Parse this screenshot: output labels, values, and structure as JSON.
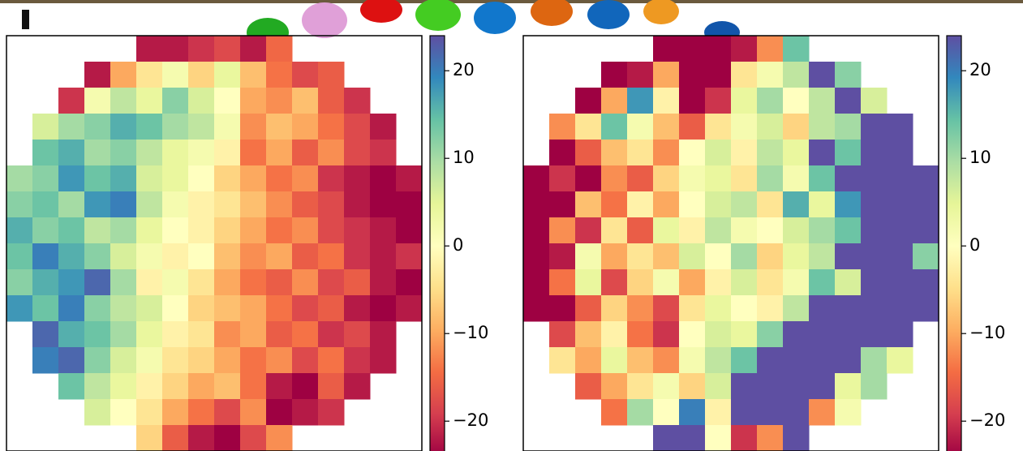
{
  "chart_data": [
    {
      "type": "heatmap",
      "zlim": [
        -24,
        24
      ],
      "colormap": [
        "#9e0142",
        "#d53e4f",
        "#f46d43",
        "#fdae61",
        "#fee08b",
        "#ffffbf",
        "#e6f598",
        "#abdda4",
        "#66c2a5",
        "#3288bd",
        "#5e4fa2"
      ],
      "colorbar_ticks": [
        {
          "value": -20,
          "label": "−20"
        },
        {
          "value": -10,
          "label": "−10"
        },
        0,
        10,
        20
      ],
      "values": [
        [
          null,
          null,
          null,
          null,
          null,
          -22,
          -22,
          -20,
          -18,
          -22,
          -15,
          null,
          null,
          null,
          null,
          null
        ],
        [
          null,
          null,
          null,
          -22,
          -10,
          -4,
          2,
          -6,
          4,
          -8,
          -14,
          -18,
          -16,
          null,
          null,
          null
        ],
        [
          null,
          null,
          -20,
          2,
          8,
          4,
          12,
          6,
          0,
          -10,
          -12,
          -8,
          -16,
          -20,
          null,
          null
        ],
        [
          null,
          6,
          10,
          12,
          16,
          14,
          10,
          8,
          2,
          -12,
          -8,
          -10,
          -14,
          -18,
          -22,
          null
        ],
        [
          null,
          14,
          16,
          10,
          12,
          8,
          4,
          2,
          -2,
          -14,
          -10,
          -16,
          -12,
          -18,
          -20,
          null
        ],
        [
          10,
          12,
          18,
          14,
          16,
          6,
          4,
          0,
          -6,
          -10,
          -14,
          -12,
          -20,
          -22,
          -24,
          -22
        ],
        [
          12,
          14,
          10,
          18,
          20,
          8,
          2,
          -2,
          -4,
          -8,
          -12,
          -16,
          -18,
          -22,
          -24,
          -24
        ],
        [
          16,
          12,
          14,
          8,
          10,
          4,
          0,
          -2,
          -6,
          -10,
          -14,
          -12,
          -18,
          -20,
          -22,
          -24
        ],
        [
          14,
          20,
          16,
          12,
          6,
          2,
          -2,
          0,
          -8,
          -12,
          -10,
          -16,
          -14,
          -20,
          -22,
          -20
        ],
        [
          12,
          16,
          18,
          22,
          10,
          -2,
          2,
          -4,
          -10,
          -14,
          -16,
          -12,
          -18,
          -16,
          -22,
          -24
        ],
        [
          18,
          14,
          20,
          12,
          8,
          6,
          0,
          -6,
          -8,
          -10,
          -14,
          -18,
          -16,
          -22,
          -24,
          -22
        ],
        [
          null,
          22,
          16,
          14,
          10,
          4,
          -2,
          -4,
          -12,
          -10,
          -16,
          -14,
          -20,
          -18,
          -22,
          null
        ],
        [
          null,
          20,
          22,
          12,
          6,
          2,
          -4,
          -6,
          -10,
          -14,
          -12,
          -18,
          -14,
          -20,
          -22,
          null
        ],
        [
          null,
          null,
          14,
          8,
          4,
          -2,
          -6,
          -10,
          -8,
          -14,
          -22,
          -24,
          -16,
          -22,
          null,
          null
        ],
        [
          null,
          null,
          null,
          6,
          0,
          -4,
          -10,
          -14,
          -18,
          -12,
          -24,
          -22,
          -20,
          null,
          null,
          null
        ],
        [
          null,
          null,
          null,
          null,
          null,
          -6,
          -16,
          -22,
          -24,
          -18,
          -12,
          null,
          null,
          null,
          null,
          null
        ]
      ]
    },
    {
      "type": "heatmap",
      "zlim": [
        -24,
        24
      ],
      "colormap": [
        "#9e0142",
        "#d53e4f",
        "#f46d43",
        "#fdae61",
        "#fee08b",
        "#ffffbf",
        "#e6f598",
        "#abdda4",
        "#66c2a5",
        "#3288bd",
        "#5e4fa2"
      ],
      "colorbar_ticks": [
        {
          "value": -20,
          "label": "−20"
        },
        {
          "value": -10,
          "label": "−10"
        },
        0,
        10,
        20
      ],
      "values": [
        [
          null,
          null,
          null,
          null,
          null,
          -24,
          -24,
          -24,
          -22,
          -12,
          14,
          null,
          null,
          null,
          null,
          null
        ],
        [
          null,
          null,
          null,
          -24,
          -22,
          -10,
          -24,
          -24,
          -4,
          2,
          8,
          24,
          12,
          null,
          null,
          null
        ],
        [
          null,
          null,
          -24,
          -10,
          18,
          -2,
          -24,
          -20,
          4,
          10,
          0,
          8,
          24,
          6,
          null,
          null
        ],
        [
          null,
          -12,
          -4,
          14,
          2,
          -8,
          -16,
          -4,
          2,
          6,
          -6,
          8,
          10,
          24,
          24,
          null
        ],
        [
          null,
          -24,
          -16,
          -8,
          -4,
          -12,
          0,
          6,
          -2,
          8,
          4,
          24,
          14,
          24,
          24,
          null
        ],
        [
          -24,
          -20,
          -24,
          -12,
          -16,
          -6,
          2,
          4,
          -4,
          10,
          2,
          14,
          24,
          24,
          24,
          24
        ],
        [
          -24,
          -24,
          -8,
          -14,
          -2,
          -10,
          0,
          6,
          8,
          -4,
          16,
          4,
          18,
          24,
          24,
          24
        ],
        [
          -24,
          -12,
          -20,
          -4,
          -16,
          4,
          -2,
          8,
          2,
          0,
          6,
          10,
          14,
          24,
          24,
          24
        ],
        [
          -24,
          -22,
          2,
          -10,
          -4,
          -8,
          6,
          0,
          10,
          -6,
          4,
          8,
          24,
          24,
          24,
          12
        ],
        [
          -24,
          -14,
          4,
          -18,
          -6,
          2,
          -10,
          -2,
          6,
          -4,
          2,
          14,
          6,
          24,
          24,
          24
        ],
        [
          -24,
          -24,
          -16,
          -6,
          -12,
          -18,
          -4,
          4,
          0,
          -2,
          8,
          24,
          24,
          24,
          24,
          24
        ],
        [
          null,
          -18,
          -8,
          -2,
          -14,
          -20,
          0,
          6,
          4,
          12,
          24,
          24,
          24,
          24,
          24,
          null
        ],
        [
          null,
          -4,
          -10,
          4,
          -8,
          -12,
          2,
          8,
          14,
          24,
          24,
          24,
          24,
          10,
          4,
          null
        ],
        [
          null,
          null,
          -16,
          -10,
          -4,
          2,
          -6,
          6,
          24,
          24,
          24,
          24,
          4,
          10,
          null,
          null
        ],
        [
          null,
          null,
          null,
          -14,
          10,
          0,
          20,
          -2,
          24,
          24,
          24,
          -12,
          2,
          null,
          null,
          null
        ],
        [
          null,
          null,
          null,
          null,
          null,
          24,
          24,
          0,
          -20,
          -12,
          24,
          null,
          null,
          null,
          null,
          null
        ]
      ]
    }
  ]
}
